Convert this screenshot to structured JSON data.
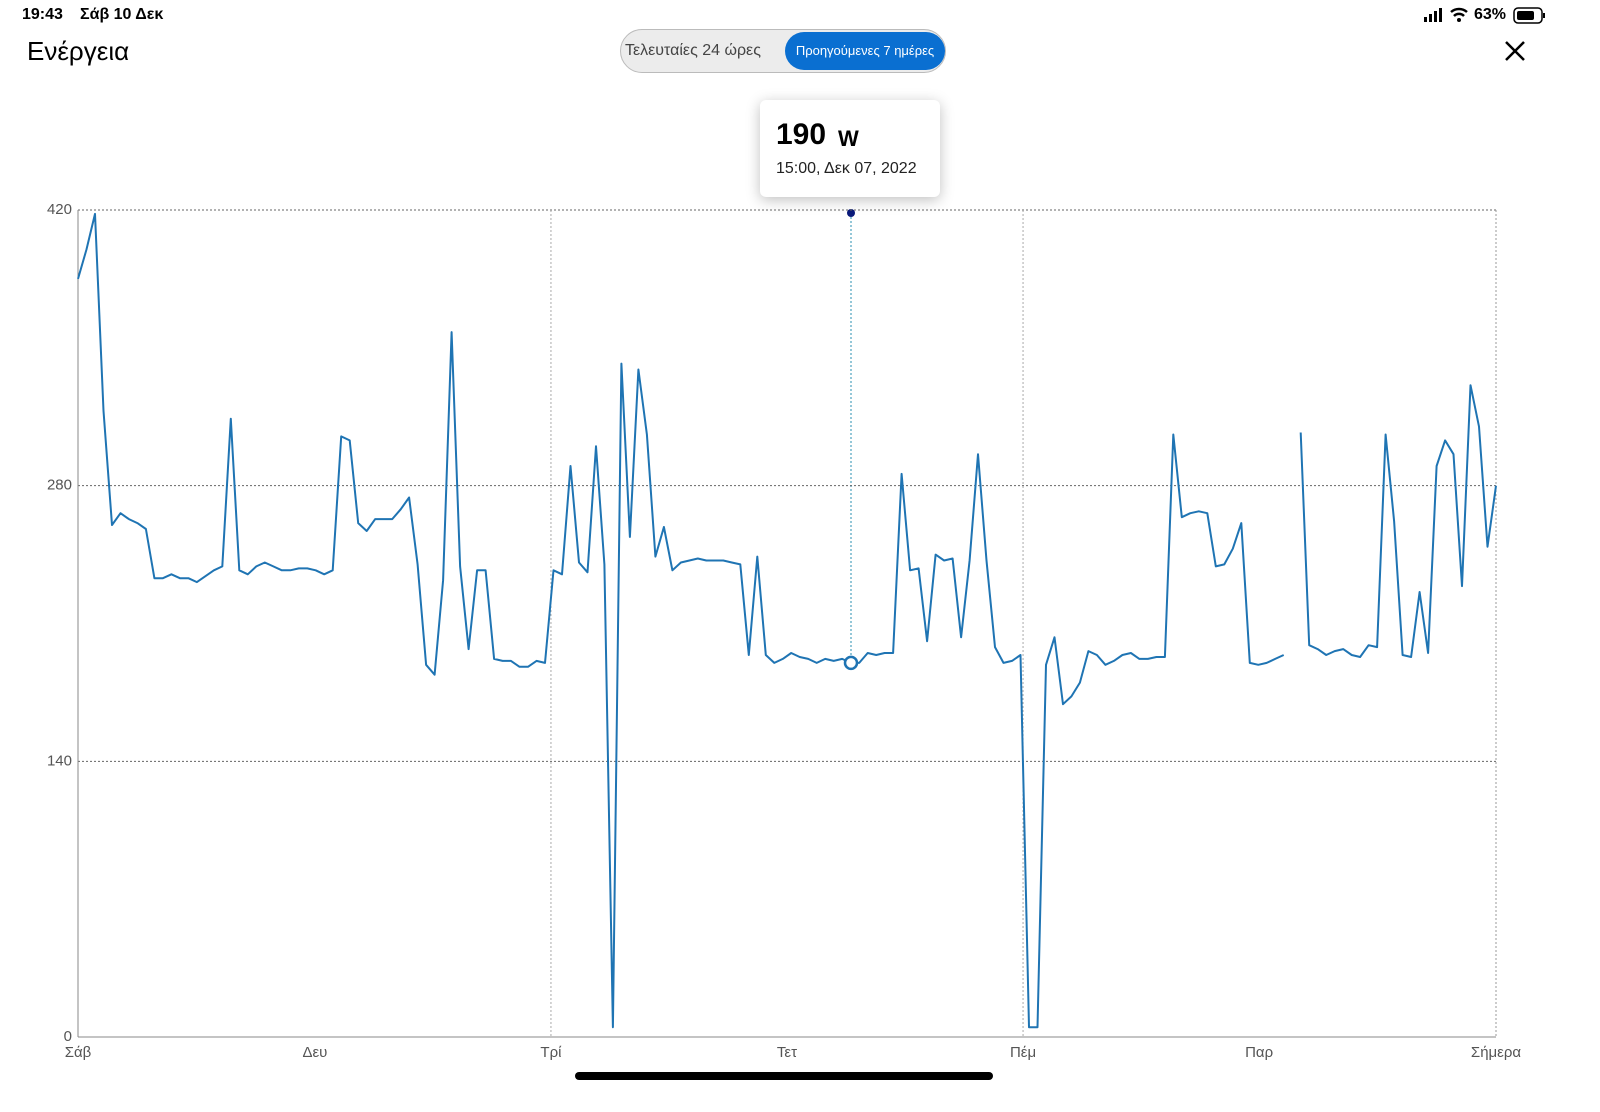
{
  "status_bar": {
    "time": "19:43",
    "date": "Σάβ 10 Δεκ",
    "battery": "63%"
  },
  "header": {
    "title": "Ενέργεια"
  },
  "tabs": [
    "Τελευταίες 24 ώρες",
    "Προηγούμενες 7 ημέρες"
  ],
  "tooltip": {
    "value": 190,
    "unit": "W",
    "label": "15:00, Δεκ 07, 2022"
  },
  "chart_data": {
    "type": "line",
    "color": "#1f74b3",
    "grid": true,
    "xlim": [
      0,
      167
    ],
    "xticks": [
      {
        "value": 0,
        "label": "Σάβ"
      },
      {
        "value": 27.9,
        "label": "Δευ"
      },
      {
        "value": 55.7,
        "label": "Τρί"
      },
      {
        "value": 83.5,
        "label": "Τετ"
      },
      {
        "value": 111.3,
        "label": "Πέμ"
      },
      {
        "value": 139.1,
        "label": "Παρ"
      },
      {
        "value": 167,
        "label": "Σήμερα"
      }
    ],
    "ylim": [
      0,
      420
    ],
    "yticks": [
      0,
      140,
      280,
      420
    ],
    "values": [
      385,
      400,
      418,
      318,
      260,
      266,
      263,
      261,
      258,
      233,
      233,
      235,
      233,
      233,
      231,
      234,
      237,
      239,
      314,
      237,
      235,
      239,
      241,
      239,
      237,
      237,
      238,
      238,
      237,
      235,
      237,
      305,
      303,
      261,
      257,
      263,
      263,
      263,
      268,
      274,
      240,
      189,
      184,
      232,
      358,
      239,
      197,
      237,
      237,
      192,
      191,
      191,
      188,
      188,
      191,
      190,
      237,
      235,
      290,
      241,
      236,
      300,
      240,
      5,
      342,
      254,
      339,
      306,
      244,
      259,
      237,
      241,
      242,
      243,
      242,
      242,
      242,
      241,
      240,
      194,
      244,
      194,
      190,
      192,
      195,
      193,
      192,
      190,
      192,
      191,
      192,
      190,
      190,
      195,
      194,
      195,
      195,
      286,
      237,
      238,
      201,
      245,
      242,
      243,
      203,
      242,
      296,
      242,
      198,
      190,
      191,
      194,
      5,
      5,
      189,
      203,
      169,
      173,
      180,
      196,
      194,
      189,
      191,
      194,
      195,
      192,
      192,
      193,
      193,
      306,
      264,
      266,
      267,
      266,
      239,
      240,
      248,
      261,
      190,
      189,
      190,
      192,
      194,
      null,
      307,
      199,
      197,
      194,
      196,
      197,
      194,
      193,
      199,
      198,
      306,
      262,
      194,
      193,
      226,
      195,
      290,
      303,
      296,
      229,
      331,
      310,
      249,
      280
    ]
  }
}
